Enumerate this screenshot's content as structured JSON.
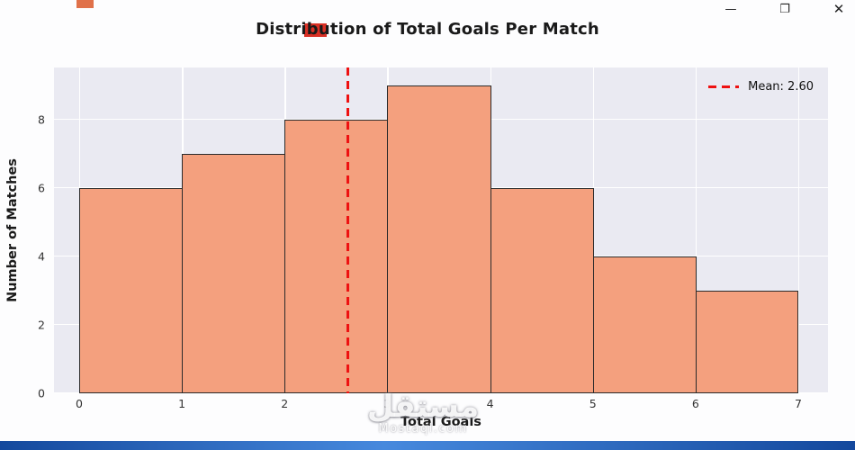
{
  "window": {
    "controls": {
      "minimize": "—",
      "restore": "❐",
      "close": "✕"
    }
  },
  "chart_data": {
    "type": "bar",
    "subtype": "histogram",
    "title": "Distribution of Total Goals Per Match",
    "xlabel": "Total Goals",
    "ylabel": "Number of Matches",
    "bin_edges": [
      0,
      1,
      2,
      3,
      4,
      5,
      6,
      7
    ],
    "counts": [
      6,
      7,
      8,
      9,
      6,
      4,
      3
    ],
    "x_ticks": [
      0,
      1,
      2,
      3,
      4,
      5,
      6,
      7
    ],
    "y_ticks": [
      0,
      2,
      4,
      6,
      8
    ],
    "ylim": [
      0,
      9.53
    ],
    "xlim": [
      -0.25,
      7.3
    ],
    "mean": 2.6,
    "legend_label": "Mean: 2.60",
    "legend_position": "upper right",
    "grid": true,
    "colors": {
      "bar_fill": "#f4a07e",
      "bar_edge": "#2b2b2b",
      "mean_line": "#ee1111",
      "plot_background": "#eaeaf2",
      "grid_line": "#ffffff",
      "tick_label": "#333333",
      "title": "#1a1a1a"
    }
  },
  "watermark": {
    "arabic": "مستقل",
    "latin": "Mostaql.com"
  },
  "footer_bar_color": "#1e6fd6"
}
